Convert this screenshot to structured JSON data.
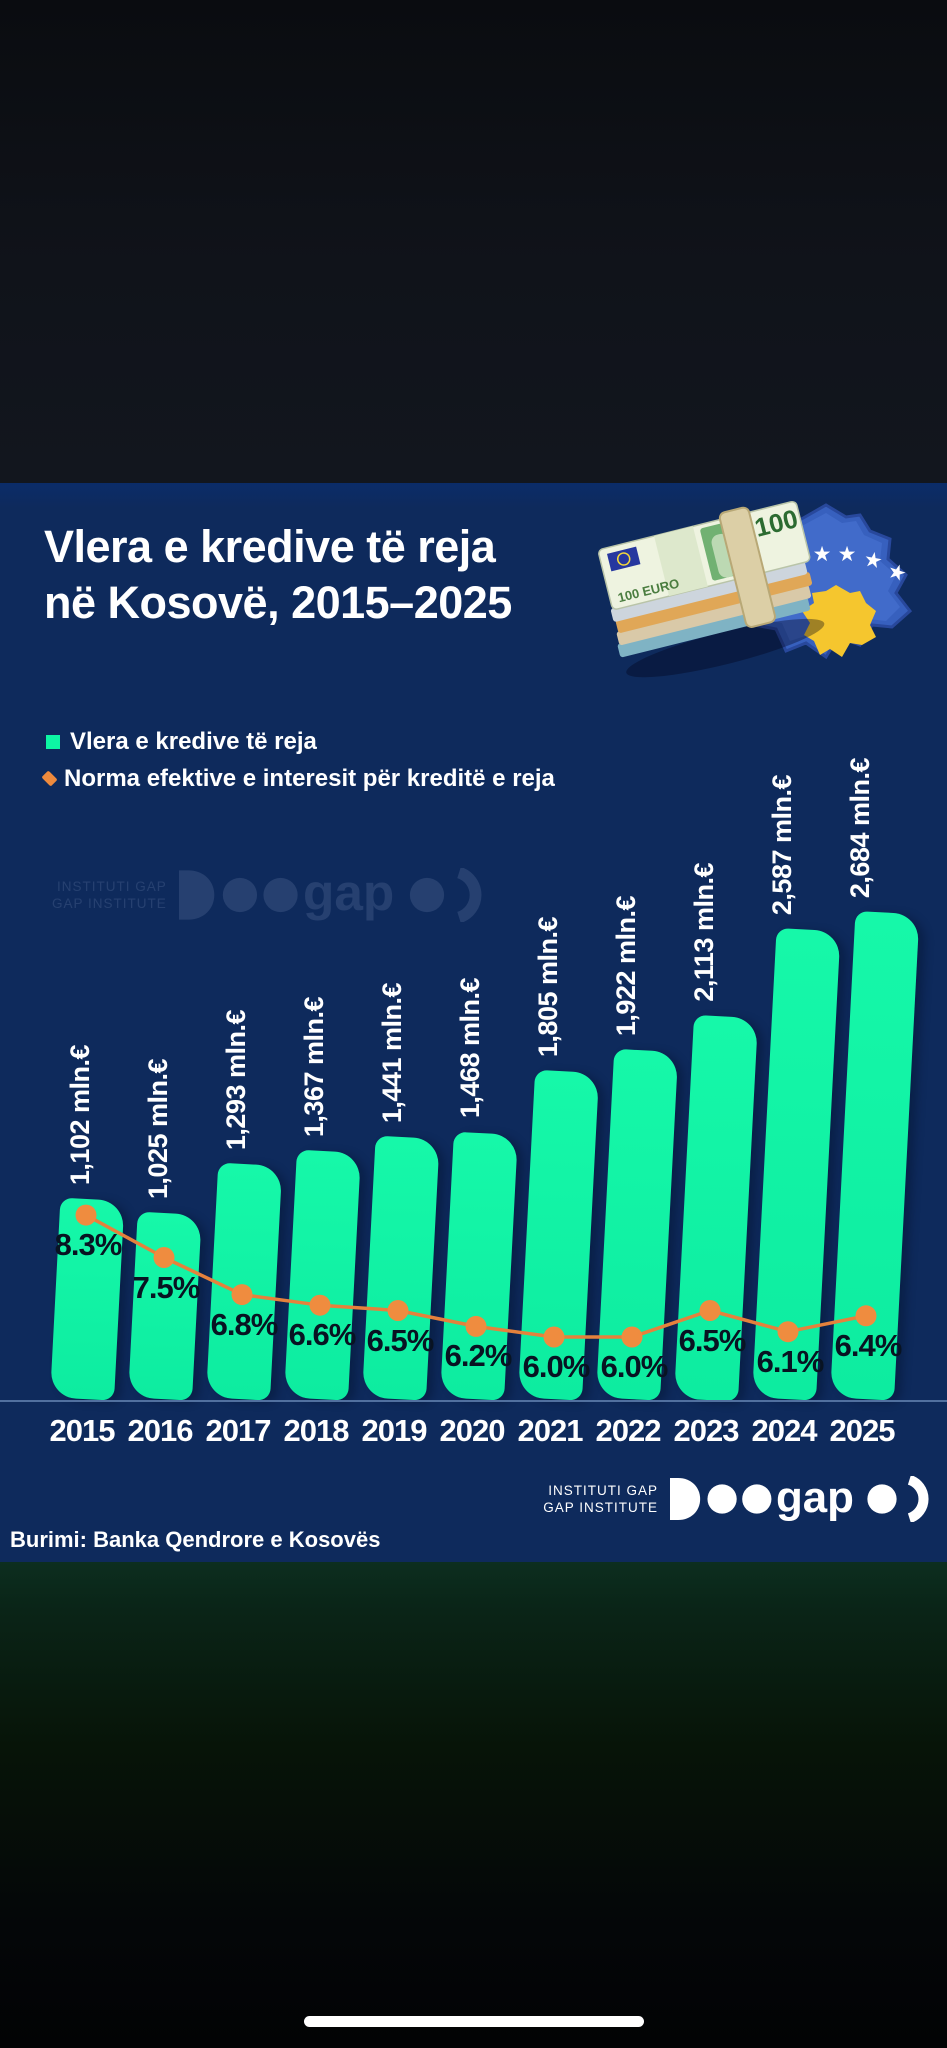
{
  "infographic": {
    "title_line1": "Vlera e kredive të reja",
    "title_line2": "në Kosovë, 2015–2025",
    "legend": {
      "items": [
        {
          "label": "Vlera e kredive të reja",
          "marker": "square",
          "color": "#0df5a4"
        },
        {
          "label": "Norma efektive e interesit për kreditë e reja",
          "marker": "diamond",
          "color": "#ee8a3d"
        }
      ]
    },
    "source": "Burimi: Banka Qendrore e Kosovës",
    "brand": {
      "line1": "INSTITUTI GAP",
      "line2": "GAP INSTITUTE",
      "logo_word": "gap"
    },
    "illustration": {
      "description": "kosovo-map-with-stars-and-euro-banknotes",
      "banknote_value": "100",
      "banknote_word": "EURO",
      "star_count": 6
    }
  },
  "chart_data": {
    "type": "bar+line",
    "categories": [
      "2015",
      "2016",
      "2017",
      "2018",
      "2019",
      "2020",
      "2021",
      "2022",
      "2023",
      "2024",
      "2025"
    ],
    "series": [
      {
        "name": "Vlera e kredive të reja",
        "type": "bar",
        "unit": "mln.€",
        "values": [
          1102,
          1025,
          1293,
          1367,
          1441,
          1468,
          1805,
          1922,
          2113,
          2587,
          2684
        ],
        "labels": [
          "1,102 mln.€",
          "1,025 mln.€",
          "1,293 mln.€",
          "1,367 mln.€",
          "1,441 mln.€",
          "1,468 mln.€",
          "1,805 mln.€",
          "1,922 mln.€",
          "2,113 mln.€",
          "2,587 mln.€",
          "2,684 mln.€"
        ]
      },
      {
        "name": "Norma efektive e interesit për kreditë e reja",
        "type": "line",
        "unit": "%",
        "values": [
          8.3,
          7.5,
          6.8,
          6.6,
          6.5,
          6.2,
          6.0,
          6.0,
          6.5,
          6.1,
          6.4
        ],
        "labels": [
          "8.3%",
          "7.5%",
          "6.8%",
          "6.6%",
          "6.5%",
          "6.2%",
          "6.0%",
          "6.0%",
          "6.5%",
          "6.1%",
          "6.4%"
        ]
      }
    ],
    "ylim_bar": [
      0,
      2800
    ],
    "grid": false,
    "legend_position": "top-left",
    "colors": {
      "background": "#0e2a5c",
      "bar": "#0df5a4",
      "line": "#e5813c",
      "marker": "#ef8c3f",
      "bar_value_text": "#ffffff",
      "rate_text": "#081322",
      "axis_line": "#51709f"
    }
  }
}
